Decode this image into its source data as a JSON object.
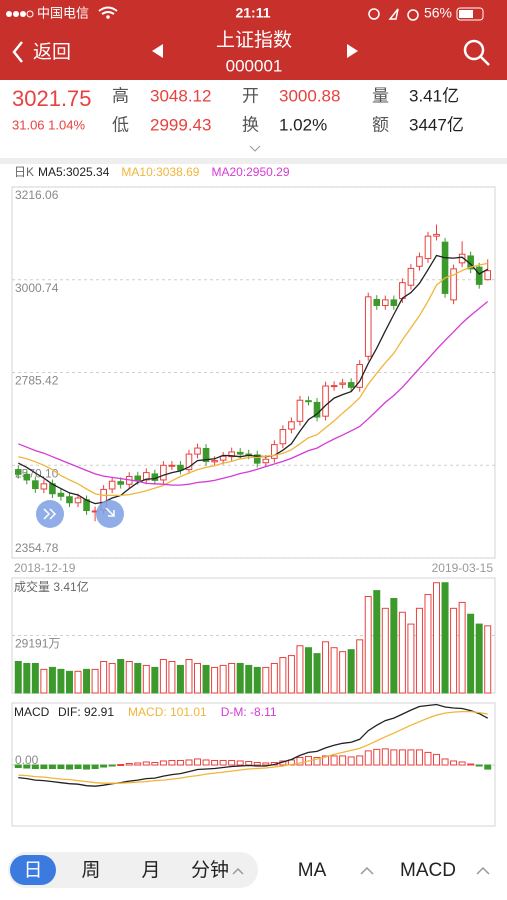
{
  "status_bar": {
    "carrier": "中国电信",
    "time": "21:11",
    "battery": "56%"
  },
  "header": {
    "back": "返回",
    "title": "上证指数",
    "code": "000001"
  },
  "quote": {
    "price": "3021.75",
    "change": "31.06 1.04%",
    "fields": [
      {
        "label": "高",
        "value": "3048.12"
      },
      {
        "label": "开",
        "value": "3000.88"
      },
      {
        "label": "量",
        "value": "3.41亿"
      },
      {
        "label": "低",
        "value": "2999.43"
      },
      {
        "label": "换",
        "value": "1.02%"
      },
      {
        "label": "额",
        "value": "3447亿"
      }
    ]
  },
  "chart_data": [
    {
      "type": "candlestick",
      "period": "日K",
      "x_labels": [
        "2018-12-19",
        "2019-03-15"
      ],
      "up_color": "#e8413e",
      "down_color": "#3c9a2d",
      "open": [
        2560,
        2549,
        2534,
        2515,
        2527,
        2505,
        2497,
        2483,
        2490,
        2463,
        2466,
        2515,
        2532,
        2526,
        2545,
        2536,
        2550,
        2536,
        2569,
        2570,
        2560,
        2596,
        2609,
        2578,
        2582,
        2590,
        2600,
        2596,
        2594,
        2576,
        2586,
        2620,
        2654,
        2672,
        2720,
        2716,
        2684,
        2753,
        2758,
        2762,
        2751,
        2823,
        2955,
        2941,
        2954,
        2957,
        2988,
        3032,
        3050,
        3102,
        3088,
        2954,
        3040,
        3056,
        3030,
        3000.88
      ],
      "high": [
        2570,
        2559,
        2544,
        2537,
        2537,
        2515,
        2507,
        2504,
        2500,
        2474,
        2524,
        2543,
        2542,
        2554,
        2555,
        2563,
        2560,
        2580,
        2580,
        2580,
        2606,
        2620,
        2619,
        2591,
        2601,
        2611,
        2610,
        2606,
        2604,
        2594,
        2628,
        2663,
        2681,
        2731,
        2730,
        2726,
        2764,
        2765,
        2771,
        2772,
        2814,
        2971,
        2965,
        2964,
        2964,
        3004,
        3037,
        3064,
        3112,
        3129,
        3098,
        3036,
        3090,
        3066,
        3040,
        3048.12
      ],
      "low": [
        2539,
        2526,
        2506,
        2505,
        2494,
        2488,
        2473,
        2473,
        2455,
        2440,
        2456,
        2505,
        2516,
        2516,
        2525,
        2526,
        2525,
        2526,
        2559,
        2549,
        2550,
        2586,
        2569,
        2568,
        2572,
        2580,
        2586,
        2584,
        2565,
        2566,
        2576,
        2610,
        2644,
        2662,
        2709,
        2672,
        2674,
        2743,
        2748,
        2741,
        2741,
        2813,
        2931,
        2931,
        2931,
        2947,
        2978,
        3022,
        3040,
        3092,
        2959,
        2944,
        3030,
        3016,
        2980,
        2999.43
      ],
      "close": [
        2549,
        2536,
        2516,
        2527,
        2504,
        2498,
        2483,
        2494,
        2465,
        2464,
        2514,
        2533,
        2526,
        2544,
        2535,
        2553,
        2535,
        2570,
        2570,
        2559,
        2596,
        2610,
        2579,
        2581,
        2591,
        2601,
        2596,
        2594,
        2575,
        2584,
        2618,
        2653,
        2671,
        2721,
        2719,
        2682,
        2754,
        2755,
        2761,
        2751,
        2804,
        2961,
        2941,
        2954,
        2941,
        2994,
        3027,
        3054,
        3102,
        3106,
        2969,
        3026,
        3060,
        3026,
        2990,
        3021.75
      ],
      "series": [
        {
          "name": "MA5:3025.34",
          "color": "#222222",
          "values": [
            2575,
            2565,
            2552,
            2540,
            2526,
            2516,
            2506,
            2501,
            2489,
            2481,
            2484,
            2494,
            2500,
            2516,
            2530,
            2538,
            2539,
            2547,
            2553,
            2557,
            2566,
            2581,
            2583,
            2585,
            2593,
            2592,
            2590,
            2593,
            2591,
            2590,
            2593,
            2605,
            2620,
            2649,
            2676,
            2689,
            2709,
            2726,
            2734,
            2741,
            2765,
            2806,
            2842,
            2882,
            2920,
            2958,
            2971,
            2992,
            3024,
            3057,
            3052,
            3051,
            3053,
            3037,
            3014,
            3025.34
          ]
        },
        {
          "name": "MA10:3038.69",
          "color": "#f0b53a",
          "values": [
            2590,
            2585,
            2578,
            2570,
            2560,
            2546,
            2536,
            2527,
            2515,
            2504,
            2500,
            2500,
            2500,
            2502,
            2506,
            2511,
            2517,
            2523,
            2534,
            2544,
            2552,
            2560,
            2565,
            2569,
            2575,
            2579,
            2585,
            2588,
            2588,
            2591,
            2593,
            2598,
            2606,
            2620,
            2634,
            2641,
            2657,
            2673,
            2691,
            2708,
            2727,
            2758,
            2784,
            2808,
            2830,
            2861,
            2889,
            2917,
            2951,
            2988,
            3005,
            3012,
            3022,
            3030,
            3035,
            3038.69
          ]
        },
        {
          "name": "MA20:2950.29",
          "color": "#d63ad6",
          "values": [
            2620,
            2612,
            2604,
            2598,
            2590,
            2582,
            2574,
            2566,
            2558,
            2550,
            2545,
            2542,
            2539,
            2536,
            2533,
            2528,
            2527,
            2526,
            2524,
            2524,
            2526,
            2530,
            2532,
            2535,
            2540,
            2545,
            2551,
            2555,
            2561,
            2567,
            2573,
            2579,
            2586,
            2595,
            2604,
            2610,
            2621,
            2631,
            2640,
            2650,
            2660,
            2678,
            2697,
            2716,
            2732,
            2751,
            2773,
            2795,
            2817,
            2839,
            2860,
            2880,
            2900,
            2918,
            2934,
            2950.29
          ]
        }
      ],
      "ylim": [
        2354.78,
        3216.06
      ],
      "yticks": [
        3216.06,
        3000.74,
        2785.42,
        {
          "value": 2570.1,
          "label": "2570.10"
        },
        2354.78
      ]
    },
    {
      "type": "bar",
      "title": "成交量 3.41亿",
      "values": [
        1.6,
        1.5,
        1.5,
        1.2,
        1.3,
        1.2,
        1.1,
        1.1,
        1.2,
        1.2,
        1.6,
        1.5,
        1.7,
        1.6,
        1.5,
        1.4,
        1.3,
        1.7,
        1.6,
        1.4,
        1.7,
        1.5,
        1.4,
        1.3,
        1.4,
        1.5,
        1.5,
        1.4,
        1.3,
        1.3,
        1.5,
        1.8,
        1.9,
        2.4,
        2.3,
        2.0,
        2.6,
        2.3,
        2.1,
        2.2,
        2.7,
        4.9,
        5.2,
        4.3,
        4.8,
        4.1,
        3.5,
        4.3,
        5.0,
        5.6,
        5.6,
        4.3,
        4.6,
        4.0,
        3.5,
        3.41
      ],
      "ylim": [
        0,
        5.84
      ],
      "yticks": [
        {
          "value": 2.9191,
          "label": "29191万"
        }
      ]
    },
    {
      "type": "macd",
      "title": "MACD",
      "series": [
        {
          "name": "DIF: 92.91",
          "color": "#222222",
          "values": [
            -25,
            -27,
            -30,
            -31,
            -33,
            -35,
            -37,
            -38,
            -41,
            -42,
            -40,
            -37,
            -35,
            -32,
            -30,
            -27,
            -26,
            -22,
            -19,
            -17,
            -13,
            -9,
            -8,
            -7,
            -5,
            -3,
            -2,
            -1,
            -2,
            -2,
            1,
            6,
            11,
            19,
            25,
            27,
            34,
            39,
            43,
            45,
            51,
            68,
            79,
            88,
            93,
            101,
            109,
            116,
            118,
            120,
            115,
            113,
            112,
            108,
            102,
            92.91
          ]
        },
        {
          "name": "MACD: 101.01",
          "color": "#f0b53a",
          "values": [
            -20,
            -21,
            -23,
            -24,
            -26,
            -28,
            -29,
            -31,
            -33,
            -35,
            -36,
            -36,
            -36,
            -35,
            -34,
            -33,
            -31,
            -30,
            -28,
            -26,
            -23,
            -21,
            -18,
            -16,
            -14,
            -12,
            -10,
            -8,
            -7,
            -6,
            -4,
            -2,
            1,
            4,
            8,
            12,
            16,
            21,
            25,
            29,
            33,
            40,
            48,
            56,
            63,
            71,
            79,
            86,
            93,
            99,
            103,
            105,
            106,
            106,
            104,
            101.01
          ]
        },
        {
          "name": "D-M: -8.11",
          "color": "#d63ad6",
          "values": [
            -5,
            -6,
            -7,
            -7,
            -7,
            -7,
            -8,
            -7,
            -8,
            -7,
            -4,
            -1,
            1,
            3,
            4,
            6,
            5,
            8,
            9,
            9,
            10,
            12,
            10,
            9,
            9,
            9,
            8,
            7,
            5,
            4,
            5,
            8,
            10,
            15,
            17,
            15,
            18,
            18,
            18,
            16,
            18,
            28,
            31,
            32,
            30,
            30,
            30,
            30,
            25,
            21,
            12,
            8,
            6,
            2,
            -2,
            -8.11
          ]
        }
      ],
      "ylim": [
        -119,
        123
      ],
      "yticks": [
        {
          "value": 0,
          "label": "0.00"
        }
      ]
    }
  ],
  "toolbar": {
    "periods": [
      "日",
      "周",
      "月",
      "分钟"
    ],
    "indicators": [
      "MA",
      "MACD"
    ]
  }
}
